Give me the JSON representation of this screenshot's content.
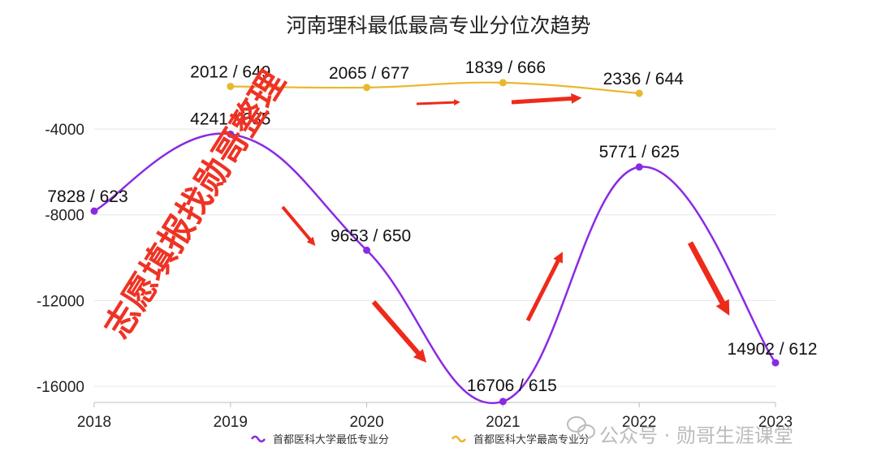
{
  "chart_data": {
    "type": "line",
    "title": "河南理科最低最高专业分位次趋势",
    "categories": [
      "2018",
      "2019",
      "2020",
      "2021",
      "2022",
      "2023"
    ],
    "yticks": [
      "-4000",
      "-8000",
      "-12000",
      "-16000"
    ],
    "ylim": [
      -16500,
      -1500
    ],
    "grid": true,
    "legend_position": "bottom",
    "series": [
      {
        "name": "首都医科大学最低专业分",
        "color": "#8a2be2",
        "values": [
          -7828,
          -4241,
          -9653,
          -16706,
          -5771,
          -14902
        ],
        "labels": [
          "7828 / 623",
          "4241 / 635",
          "9653 / 650",
          "16706 / 615",
          "5771 / 625",
          "14902 / 612"
        ]
      },
      {
        "name": "首都医科大学最高专业分",
        "color": "#e8b92e",
        "values": [
          null,
          -2012,
          -2065,
          -1839,
          -2336,
          null
        ],
        "labels": [
          null,
          "2012 / 649",
          "2065 / 677",
          "1839 / 666",
          "2336 / 644",
          null
        ]
      }
    ]
  },
  "watermark": "公众号 · 勋哥生涯课堂",
  "stamp": "志愿填报找勋哥整理",
  "colors": {
    "arrow": "#ee2a1b",
    "grid": "#e6e6e6",
    "axis": "#bdbdbd"
  }
}
